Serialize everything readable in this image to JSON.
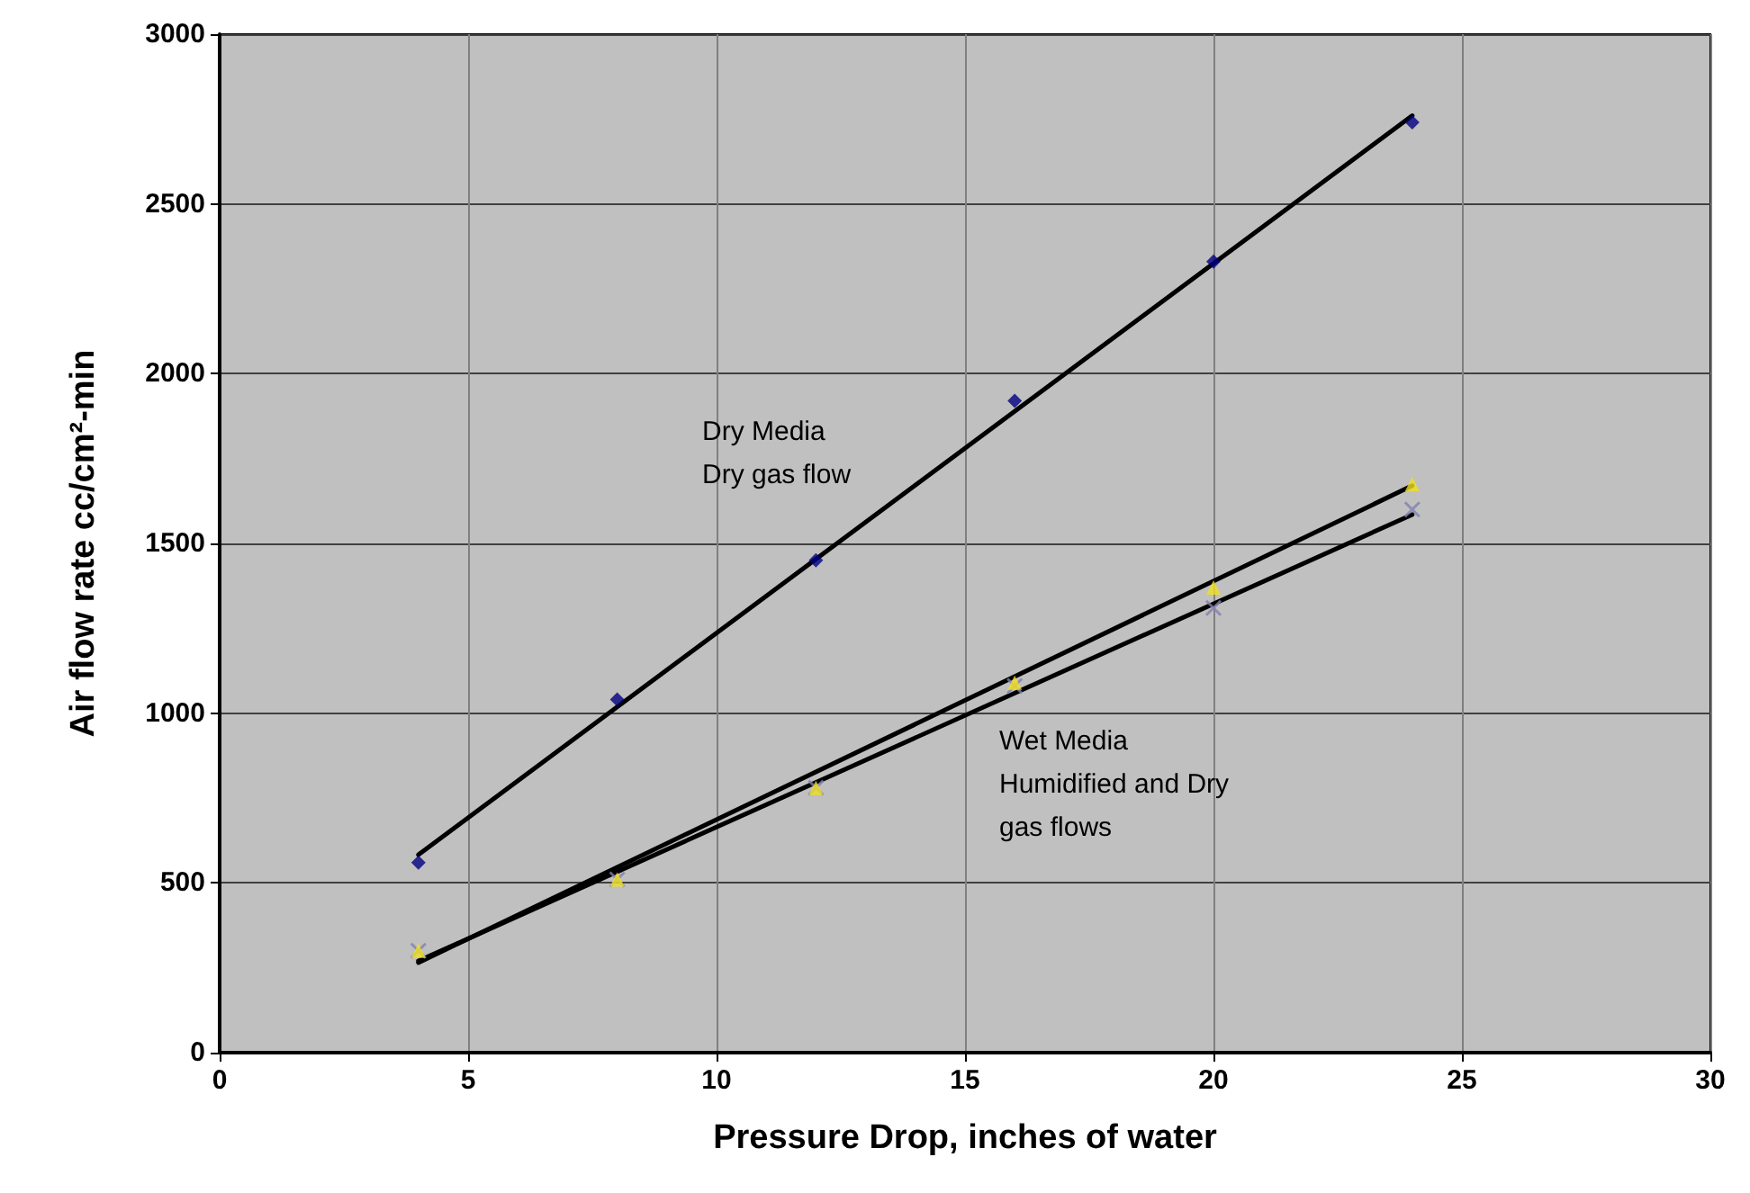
{
  "chart_data": {
    "type": "scatter",
    "xlabel": "Pressure Drop, inches of water",
    "ylabel": "Air flow rate cc/cm²-min",
    "xlim": [
      0,
      30
    ],
    "xticks": [
      0,
      5,
      10,
      15,
      20,
      25,
      30
    ],
    "ylim": [
      0,
      3000
    ],
    "yticks": [
      0,
      500,
      1000,
      1500,
      2000,
      2500,
      3000
    ],
    "grid": true,
    "series": [
      {
        "marker": "diamond",
        "color": "#000080",
        "x": [
          4,
          8,
          12,
          16,
          20,
          24
        ],
        "values": [
          560,
          1040,
          1450,
          1920,
          2330,
          2740
        ]
      },
      {
        "marker": "cross",
        "color": "#8080b0",
        "x": [
          4,
          8,
          12,
          16,
          20,
          24
        ],
        "values": [
          300,
          510,
          780,
          1080,
          1310,
          1600
        ]
      },
      {
        "marker": "triangle",
        "color": "#f0e020",
        "x": [
          4,
          8,
          12,
          16,
          20,
          24
        ],
        "values": [
          300,
          510,
          780,
          1090,
          1370,
          1675
        ]
      },
      {
        "type": "line",
        "marker": "none",
        "line_style": "solid",
        "color": "#000000",
        "x": [
          4,
          24
        ],
        "values": [
          583,
          2760
        ]
      },
      {
        "type": "line",
        "marker": "none",
        "line_style": "solid",
        "color": "#000000",
        "x": [
          4,
          24
        ],
        "values": [
          270,
          1585
        ]
      },
      {
        "type": "line",
        "marker": "none",
        "line_style": "solid",
        "color": "#000000",
        "x": [
          4,
          24
        ],
        "values": [
          265,
          1670
        ]
      }
    ],
    "annotations": [
      "Dry Media\nDry gas flow",
      "Wet Media\nHumidified and Dry\ngas flows"
    ]
  }
}
